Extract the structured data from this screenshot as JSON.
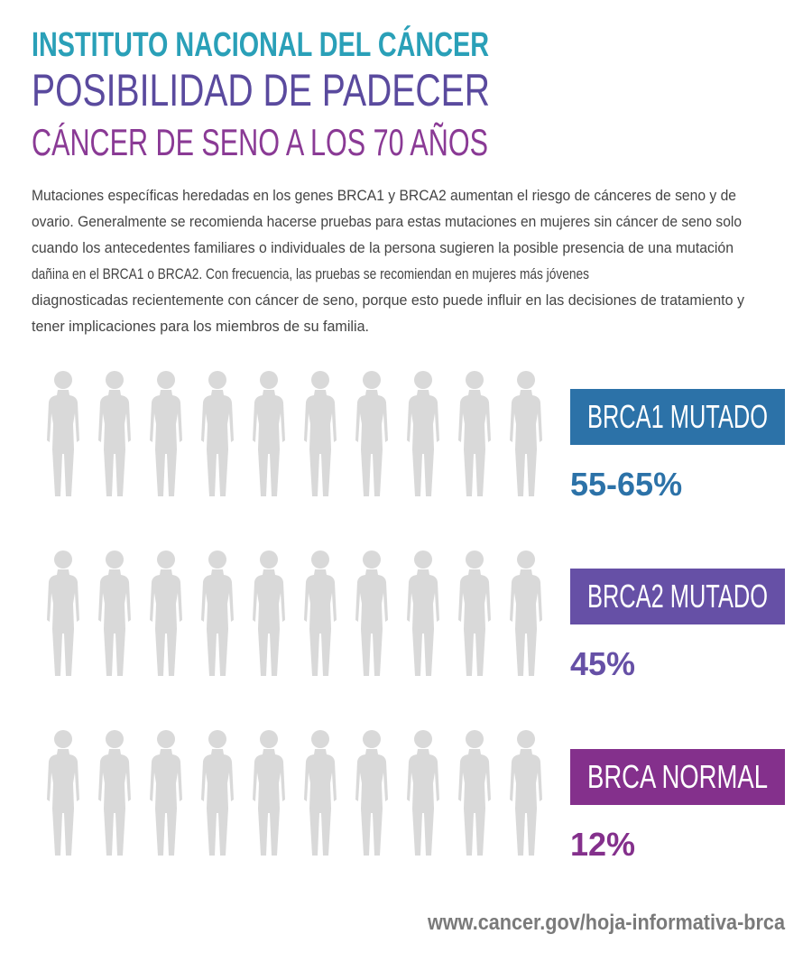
{
  "header": {
    "org": "INSTITUTO NACIONAL DEL CÁNCER",
    "title": "POSIBILIDAD DE PADECER",
    "subtitle": "CÁNCER DE SENO A LOS 70 AÑOS"
  },
  "intro": {
    "lines": [
      "Mutaciones específicas heredadas en los genes BRCA1 y BRCA2 aumentan el riesgo de cánceres de seno y de",
      "ovario. Generalmente se recomienda hacerse pruebas para estas mutaciones en mujeres sin cáncer de seno solo",
      "cuando los antecedentes familiares o individuales de la persona sugieren la posible presencia de una mutación",
      "dañina en el BRCA1 o BRCA2. Con frecuencia, las pruebas se recomiendan en mujeres más jóvenes",
      "diagnosticadas recientemente con cáncer de seno, porque esto puede influir en las decisiones de tratamiento y",
      "tener implicaciones para los miembros de su familia."
    ]
  },
  "rows": [
    {
      "label": "BRCA1 MUTADO",
      "values": [
        55,
        65
      ],
      "value_label": "55-65%",
      "color": "#2c72a8"
    },
    {
      "label": "BRCA2 MUTADO",
      "values": [
        45
      ],
      "value_label": "45%",
      "color": "#6650a6"
    },
    {
      "label": "BRCA NORMAL",
      "values": [
        12
      ],
      "value_label": "12%",
      "color": "#84308c"
    }
  ],
  "footer": {
    "url": "www.cancer.gov/hoja-informativa-brca"
  }
}
